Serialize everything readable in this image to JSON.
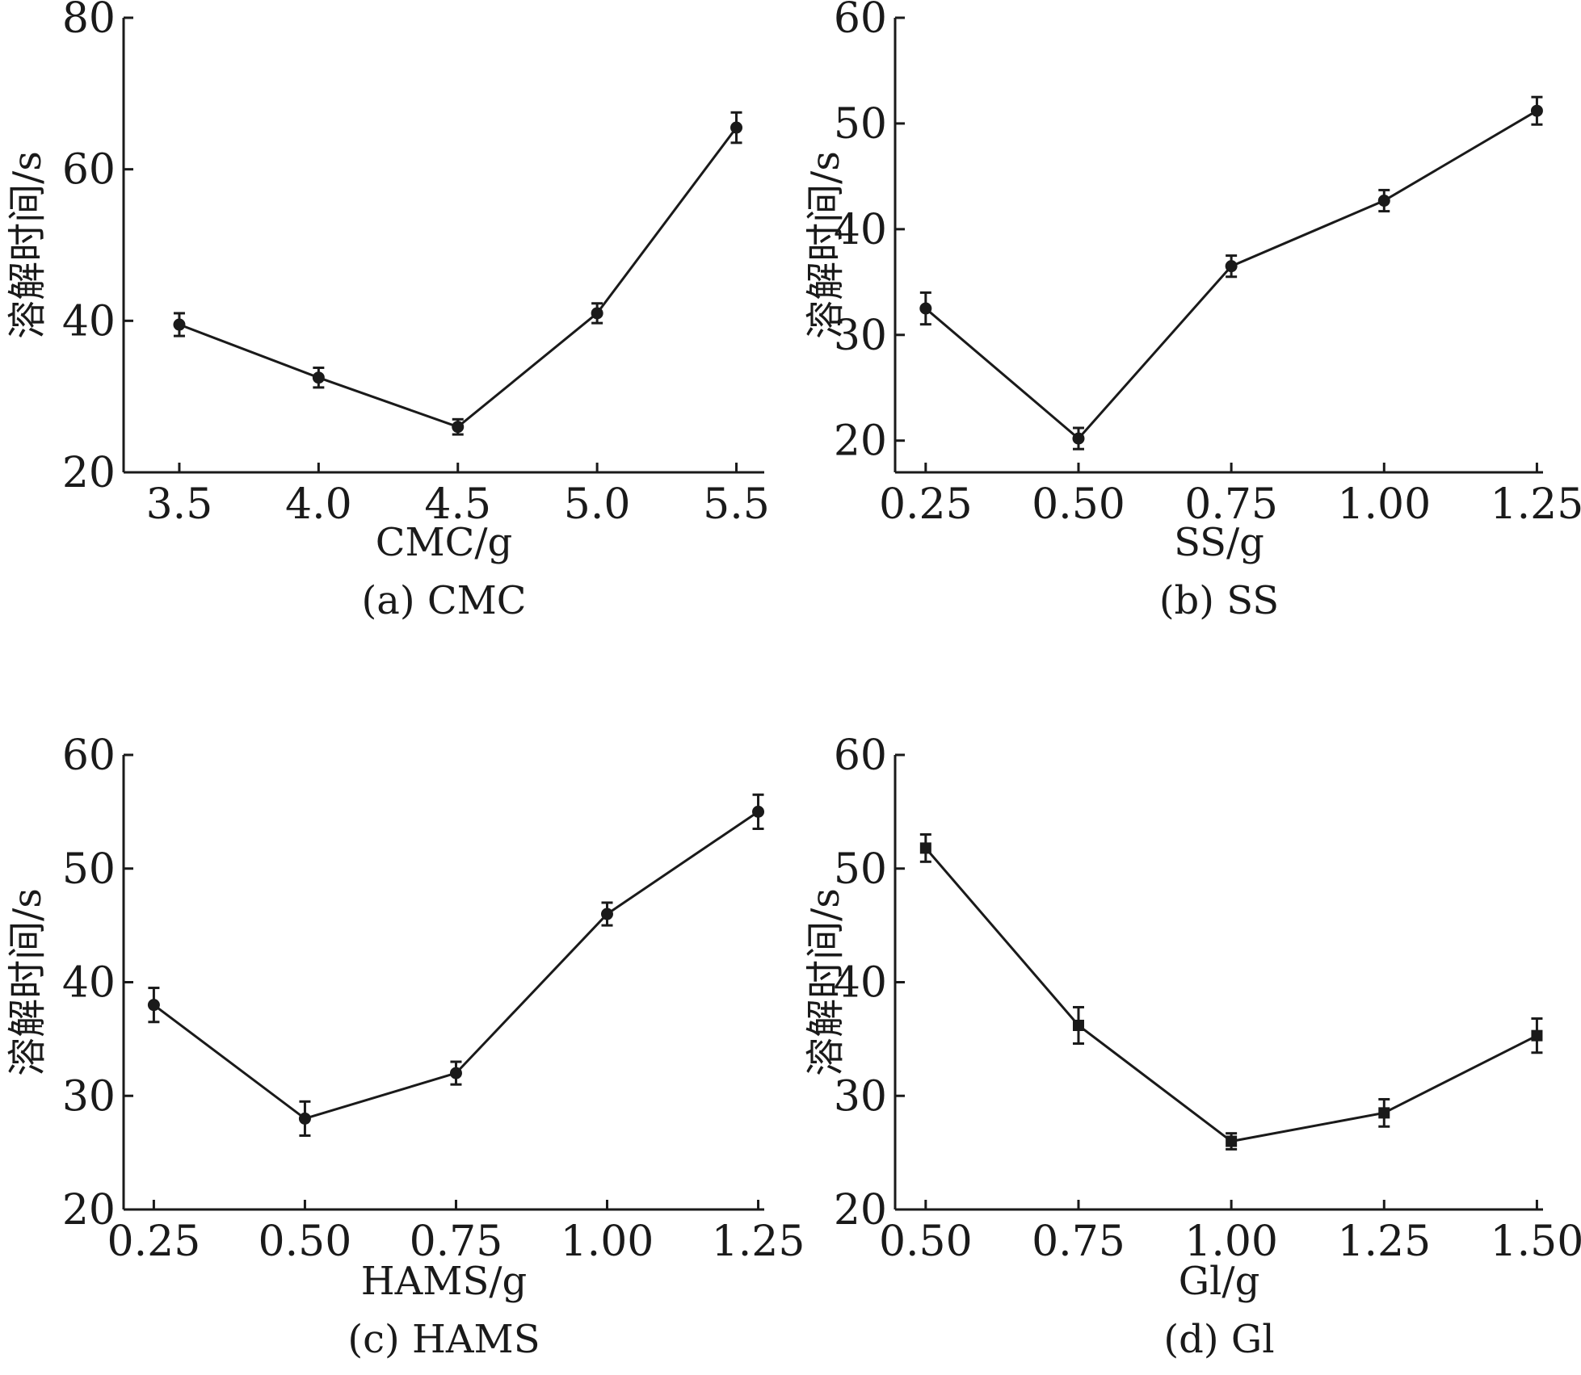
{
  "chart_data": [
    {
      "type": "line",
      "caption": "(a) CMC",
      "xlabel": "CMC/g",
      "ylabel": "溶解时间/s",
      "x": [
        3.5,
        4.0,
        4.5,
        5.0,
        5.5
      ],
      "y": [
        39.5,
        32.5,
        26.0,
        41.0,
        65.5
      ],
      "err": [
        1.5,
        1.3,
        1.0,
        1.3,
        2.0
      ],
      "xticks": [
        "3.5",
        "4.0",
        "4.5",
        "5.0",
        "5.5"
      ],
      "yticks": [
        "20",
        "40",
        "60",
        "80"
      ],
      "xlim": [
        3.3,
        5.6
      ],
      "ylim": [
        20,
        80
      ],
      "marker": "circle"
    },
    {
      "type": "line",
      "caption": "(b) SS",
      "xlabel": "SS/g",
      "ylabel": "溶解时间/s",
      "x": [
        0.25,
        0.5,
        0.75,
        1.0,
        1.25
      ],
      "y": [
        32.5,
        20.2,
        36.5,
        42.7,
        51.2
      ],
      "err": [
        1.5,
        1.0,
        1.0,
        1.0,
        1.3
      ],
      "xticks": [
        "0.25",
        "0.50",
        "0.75",
        "1.00",
        "1.25"
      ],
      "yticks": [
        "20",
        "30",
        "40",
        "50",
        "60"
      ],
      "xlim": [
        0.2,
        1.26
      ],
      "ylim": [
        17,
        60
      ],
      "marker": "circle"
    },
    {
      "type": "line",
      "caption": "(c) HAMS",
      "xlabel": "HAMS/g",
      "ylabel": "溶解时间/s",
      "x": [
        0.25,
        0.5,
        0.75,
        1.0,
        1.25
      ],
      "y": [
        38.0,
        28.0,
        32.0,
        46.0,
        55.0
      ],
      "err": [
        1.5,
        1.5,
        1.0,
        1.0,
        1.5
      ],
      "xticks": [
        "0.25",
        "0.50",
        "0.75",
        "1.00",
        "1.25"
      ],
      "yticks": [
        "20",
        "30",
        "40",
        "50",
        "60"
      ],
      "xlim": [
        0.2,
        1.26
      ],
      "ylim": [
        20,
        60
      ],
      "marker": "circle"
    },
    {
      "type": "line",
      "caption": "(d) Gl",
      "xlabel": "Gl/g",
      "ylabel": "溶解时间/s",
      "x": [
        0.5,
        0.75,
        1.0,
        1.25,
        1.5
      ],
      "y": [
        51.8,
        36.2,
        26.0,
        28.5,
        35.3
      ],
      "err": [
        1.2,
        1.6,
        0.7,
        1.2,
        1.5
      ],
      "xticks": [
        "0.50",
        "0.75",
        "1.00",
        "1.25",
        "1.50"
      ],
      "yticks": [
        "20",
        "30",
        "40",
        "50",
        "60"
      ],
      "xlim": [
        0.45,
        1.51
      ],
      "ylim": [
        20,
        60
      ],
      "marker": "square"
    }
  ]
}
